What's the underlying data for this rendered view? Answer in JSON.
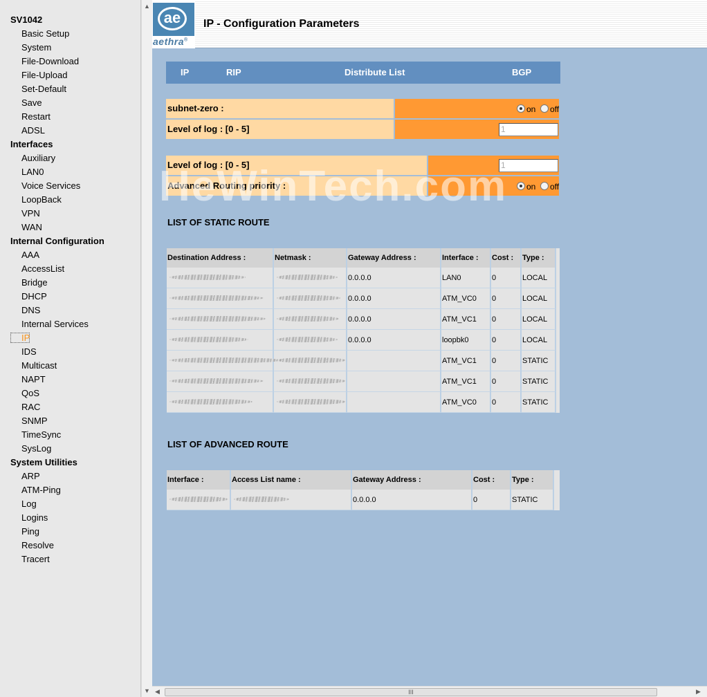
{
  "nav": {
    "device": "SV1042",
    "groups": [
      {
        "label": "Basic Setup",
        "items": [
          "System",
          "File-Download",
          "File-Upload",
          "Set-Default",
          "Save",
          "Restart",
          "ADSL"
        ]
      },
      {
        "label": "Interfaces",
        "items": [
          "Auxiliary",
          "LAN0",
          "Voice Services",
          "LoopBack",
          "VPN",
          "WAN"
        ]
      },
      {
        "label": "Internal Configuration",
        "items": [
          "AAA",
          "AccessList",
          "Bridge",
          "DHCP",
          "DNS",
          "Internal Services",
          "IP",
          "IDS",
          "Multicast",
          "NAPT",
          "QoS",
          "RAC",
          "SNMP",
          "TimeSync",
          "SysLog"
        ]
      },
      {
        "label": "System Utilities",
        "items": [
          "ARP",
          "ATM-Ping",
          "Log",
          "Logins",
          "Ping",
          "Resolve",
          "Tracert"
        ]
      }
    ],
    "active_item": "IP"
  },
  "header": {
    "logo_mark": "ae",
    "logo_text": "aethra",
    "logo_reg": "®",
    "title": "IP - Configuration Parameters"
  },
  "tabs": [
    "IP",
    "RIP",
    "Distribute List",
    "BGP"
  ],
  "form1": {
    "subnet_zero_label": "subnet-zero :",
    "subnet_zero_value": "on",
    "log_label": "Level of log : [0 - 5]",
    "log_value": "1"
  },
  "form2": {
    "log_label": "Level of log : [0 - 5]",
    "log_value": "1",
    "adv_label": "Advanced Routing priority :",
    "adv_value": "on"
  },
  "radio_labels": {
    "on": "on",
    "off": "off"
  },
  "static_route": {
    "title": "LIST OF STATIC ROUTE",
    "headers": [
      "Destination Address :",
      "Netmask :",
      "Gateway Address :",
      "Interface :",
      "Cost :",
      "Type :"
    ],
    "rows": [
      {
        "gateway": "0.0.0.0",
        "interface": "LAN0",
        "cost": "0",
        "type": "LOCAL"
      },
      {
        "gateway": "0.0.0.0",
        "interface": "ATM_VC0",
        "cost": "0",
        "type": "LOCAL"
      },
      {
        "gateway": "0.0.0.0",
        "interface": "ATM_VC1",
        "cost": "0",
        "type": "LOCAL"
      },
      {
        "gateway": "0.0.0.0",
        "interface": "loopbk0",
        "cost": "0",
        "type": "LOCAL"
      },
      {
        "gateway": "",
        "interface": "ATM_VC1",
        "cost": "0",
        "type": "STATIC"
      },
      {
        "gateway": "",
        "interface": "ATM_VC1",
        "cost": "0",
        "type": "STATIC"
      },
      {
        "gateway": "",
        "interface": "ATM_VC0",
        "cost": "0",
        "type": "STATIC"
      }
    ]
  },
  "advanced_route": {
    "title": "LIST OF ADVANCED ROUTE",
    "headers": [
      "Interface :",
      "Access List name :",
      "Gateway Address :",
      "Cost :",
      "Type :"
    ],
    "rows": [
      {
        "gateway": "0.0.0.0",
        "cost": "0",
        "type": "STATIC"
      }
    ]
  },
  "watermark": "HeWinTech.com",
  "scrollbar": {
    "grip": "III"
  }
}
